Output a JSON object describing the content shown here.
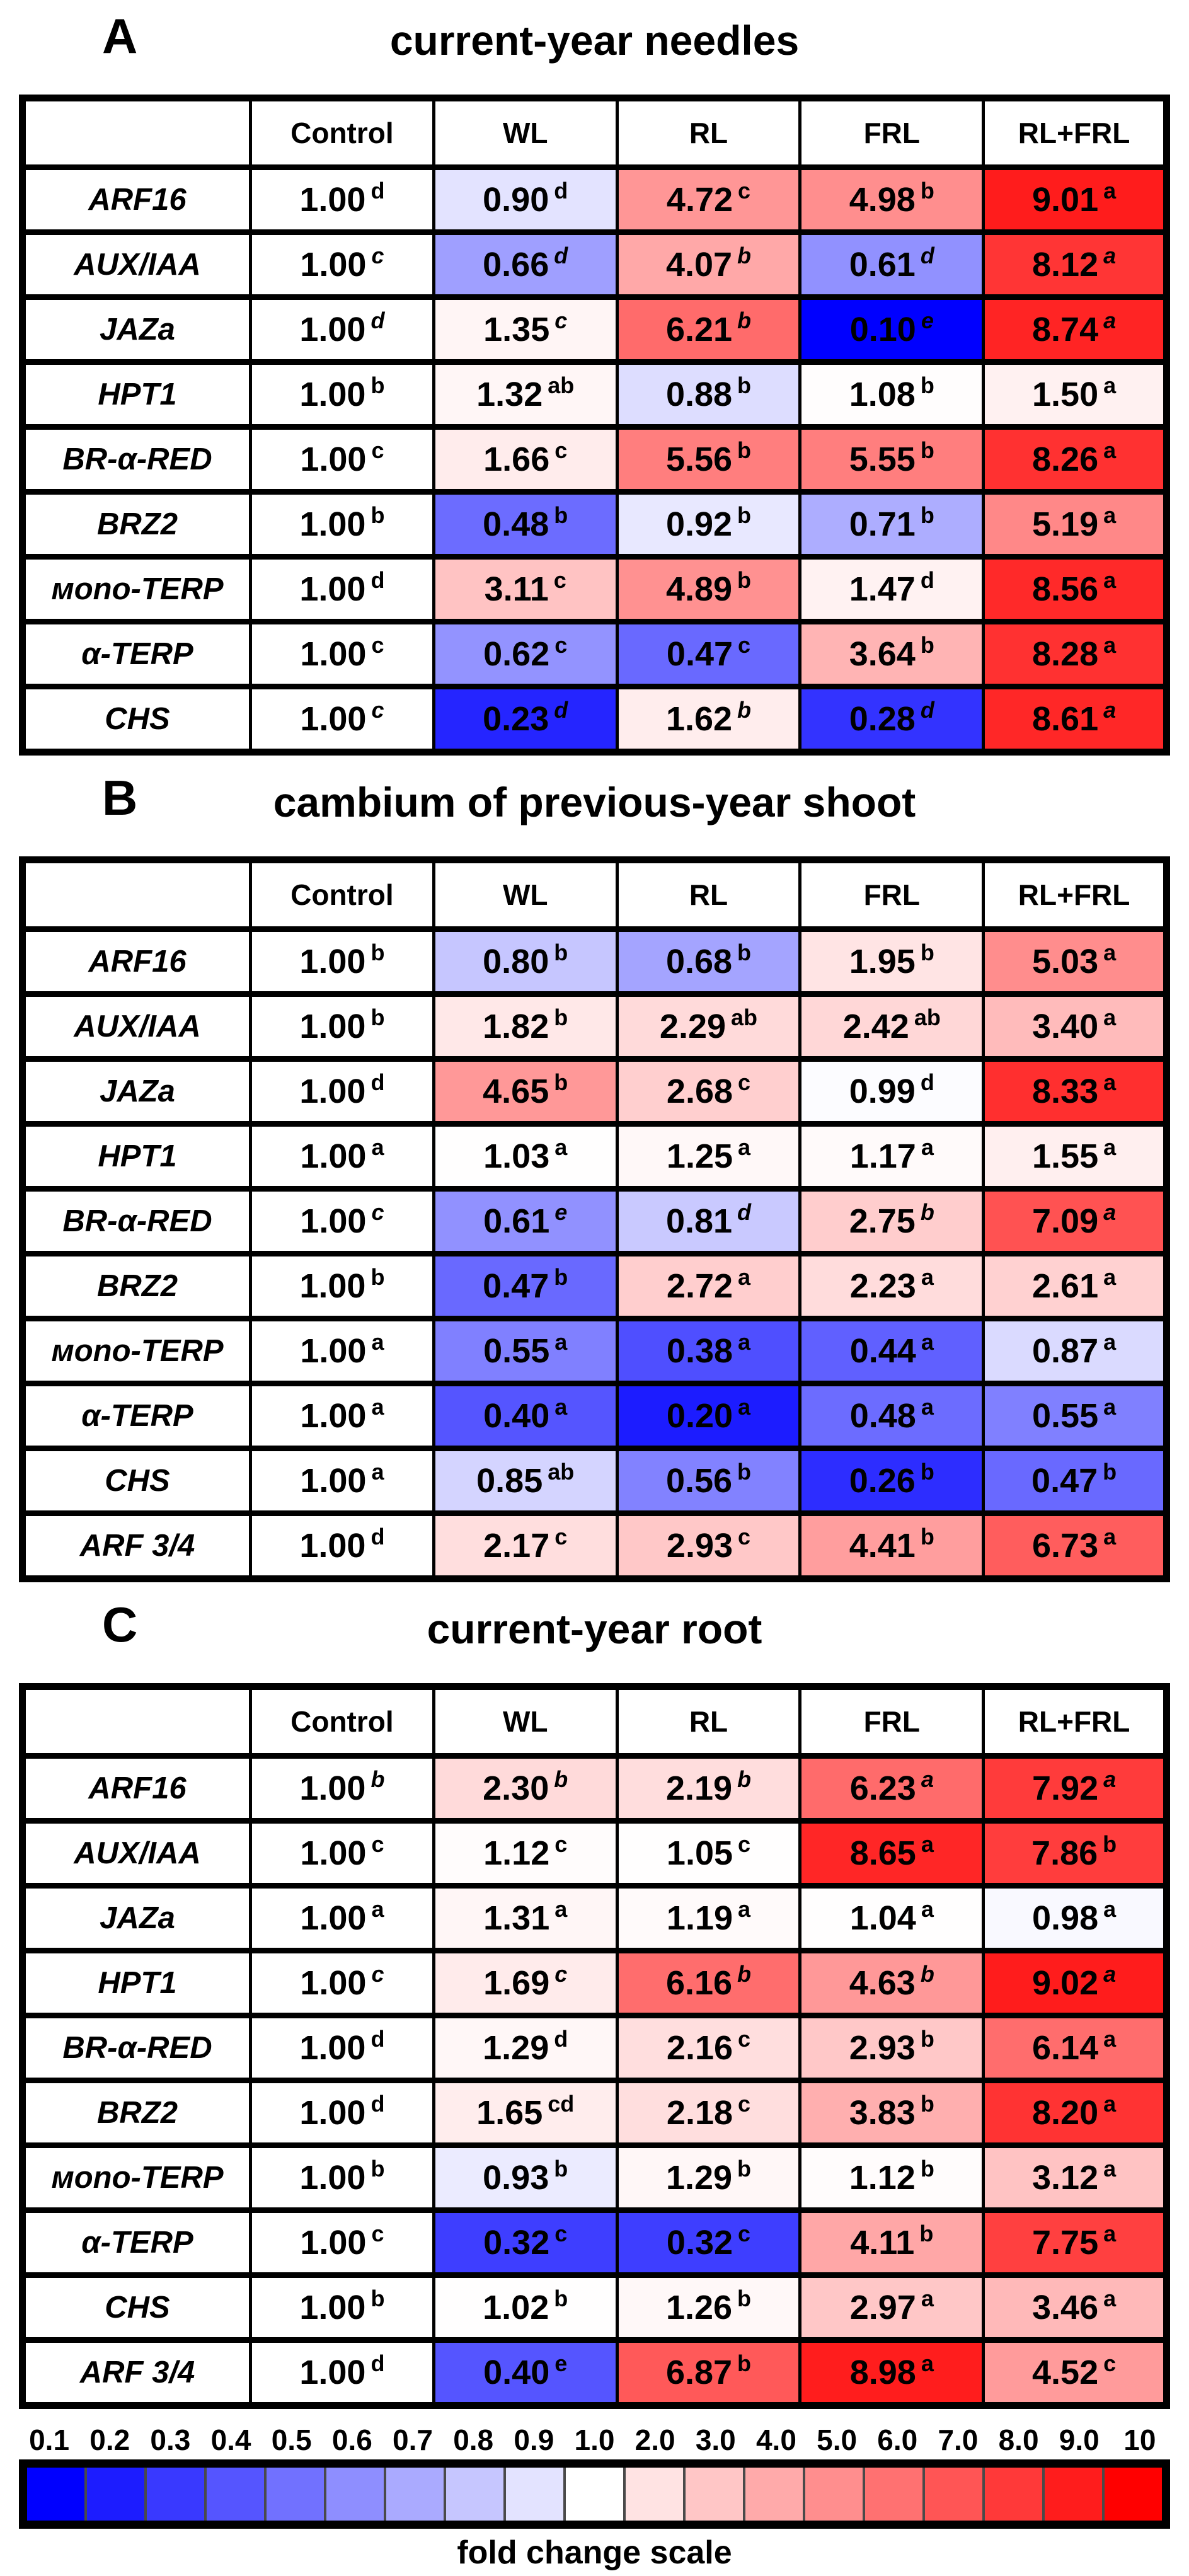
{
  "chart_data": {
    "type": "heatmap",
    "description": "Gene expression fold-change heatmap tables under light treatments, blue = down-regulated, red = up-regulated, superscript letters = significance groups",
    "panels": [
      {
        "panel_label": "A",
        "title": "current-year needles",
        "columns": [
          "Control",
          "WL",
          "RL",
          "FRL",
          "RL+FRL"
        ],
        "genes": [
          "ARF16",
          "AUX/IAA",
          "JAZa",
          "HPT1",
          "BR-α-RED",
          "BRZ2",
          "мono-TERP",
          "α-TERP",
          "CHS"
        ],
        "values": [
          [
            1.0,
            0.9,
            4.72,
            4.98,
            9.01
          ],
          [
            1.0,
            0.66,
            4.07,
            0.61,
            8.12
          ],
          [
            1.0,
            1.35,
            6.21,
            0.1,
            8.74
          ],
          [
            1.0,
            1.32,
            0.88,
            1.08,
            1.5
          ],
          [
            1.0,
            1.66,
            5.56,
            5.55,
            8.26
          ],
          [
            1.0,
            0.48,
            0.92,
            0.71,
            5.19
          ],
          [
            1.0,
            3.11,
            4.89,
            1.47,
            8.56
          ],
          [
            1.0,
            0.62,
            0.47,
            3.64,
            8.28
          ],
          [
            1.0,
            0.23,
            1.62,
            0.28,
            8.61
          ]
        ],
        "letters": [
          [
            "d",
            "d",
            "c",
            "b",
            "a"
          ],
          [
            "c",
            "d",
            "b",
            "d",
            "a"
          ],
          [
            "d",
            "c",
            "b",
            "e",
            "a"
          ],
          [
            "b",
            "ab",
            "b",
            "b",
            "a"
          ],
          [
            "c",
            "c",
            "b",
            "b",
            "a"
          ],
          [
            "b",
            "b",
            "b",
            "b",
            "a"
          ],
          [
            "d",
            "c",
            "b",
            "d",
            "a"
          ],
          [
            "c",
            "c",
            "c",
            "b",
            "a"
          ],
          [
            "c",
            "d",
            "b",
            "d",
            "a"
          ]
        ],
        "letters_italic_rows": [
          false,
          true,
          true,
          false,
          false,
          false,
          false,
          false,
          true
        ]
      },
      {
        "panel_label": "B",
        "title": "cambium of previous-year shoot",
        "columns": [
          "Control",
          "WL",
          "RL",
          "FRL",
          "RL+FRL"
        ],
        "genes": [
          "ARF16",
          "AUX/IAA",
          "JAZa",
          "HPT1",
          "BR-α-RED",
          "BRZ2",
          "мono-TERP",
          "α-TERP",
          "CHS",
          "ARF 3/4"
        ],
        "values": [
          [
            1.0,
            0.8,
            0.68,
            1.95,
            5.03
          ],
          [
            1.0,
            1.82,
            2.29,
            2.42,
            3.4
          ],
          [
            1.0,
            4.65,
            2.68,
            0.99,
            8.33
          ],
          [
            1.0,
            1.03,
            1.25,
            1.17,
            1.55
          ],
          [
            1.0,
            0.61,
            0.81,
            2.75,
            7.09
          ],
          [
            1.0,
            0.47,
            2.72,
            2.23,
            2.61
          ],
          [
            1.0,
            0.55,
            0.38,
            0.44,
            0.87
          ],
          [
            1.0,
            0.4,
            0.2,
            0.48,
            0.55
          ],
          [
            1.0,
            0.85,
            0.56,
            0.26,
            0.47
          ],
          [
            1.0,
            2.17,
            2.93,
            4.41,
            6.73
          ]
        ],
        "letters": [
          [
            "b",
            "b",
            "b",
            "b",
            "a"
          ],
          [
            "b",
            "b",
            "ab",
            "ab",
            "a"
          ],
          [
            "d",
            "b",
            "c",
            "d",
            "a"
          ],
          [
            "a",
            "a",
            "a",
            "a",
            "a"
          ],
          [
            "c",
            "e",
            "d",
            "b",
            "a"
          ],
          [
            "b",
            "b",
            "a",
            "a",
            "a"
          ],
          [
            "a",
            "a",
            "a",
            "a",
            "a"
          ],
          [
            "a",
            "a",
            "a",
            "a",
            "a"
          ],
          [
            "a",
            "ab",
            "b",
            "b",
            "b"
          ],
          [
            "d",
            "c",
            "c",
            "b",
            "a"
          ]
        ],
        "letters_italic_rows": [
          false,
          false,
          false,
          false,
          true,
          false,
          false,
          false,
          false,
          false
        ]
      },
      {
        "panel_label": "C",
        "title": "current-year root",
        "columns": [
          "Control",
          "WL",
          "RL",
          "FRL",
          "RL+FRL"
        ],
        "genes": [
          "ARF16",
          "AUX/IAA",
          "JAZa",
          "HPT1",
          "BR-α-RED",
          "BRZ2",
          "мono-TERP",
          "α-TERP",
          "CHS",
          "ARF 3/4"
        ],
        "values": [
          [
            1.0,
            2.3,
            2.19,
            6.23,
            7.92
          ],
          [
            1.0,
            1.12,
            1.05,
            8.65,
            7.86
          ],
          [
            1.0,
            1.31,
            1.19,
            1.04,
            0.98
          ],
          [
            1.0,
            1.69,
            6.16,
            4.63,
            9.02
          ],
          [
            1.0,
            1.29,
            2.16,
            2.93,
            6.14
          ],
          [
            1.0,
            1.65,
            2.18,
            3.83,
            8.2
          ],
          [
            1.0,
            0.93,
            1.29,
            1.12,
            3.12
          ],
          [
            1.0,
            0.32,
            0.32,
            4.11,
            7.75
          ],
          [
            1.0,
            1.02,
            1.26,
            2.97,
            3.46
          ],
          [
            1.0,
            0.4,
            6.87,
            8.98,
            4.52
          ]
        ],
        "letters": [
          [
            "b",
            "b",
            "b",
            "a",
            "a"
          ],
          [
            "c",
            "c",
            "c",
            "a",
            "b"
          ],
          [
            "a",
            "a",
            "a",
            "a",
            "a"
          ],
          [
            "c",
            "c",
            "b",
            "b",
            "a"
          ],
          [
            "d",
            "d",
            "c",
            "b",
            "a"
          ],
          [
            "d",
            "cd",
            "c",
            "b",
            "a"
          ],
          [
            "b",
            "b",
            "b",
            "b",
            "a"
          ],
          [
            "c",
            "c",
            "c",
            "b",
            "a"
          ],
          [
            "b",
            "b",
            "b",
            "a",
            "a"
          ],
          [
            "d",
            "e",
            "b",
            "a",
            "c"
          ]
        ],
        "letters_italic_rows": [
          true,
          false,
          false,
          true,
          false,
          false,
          false,
          false,
          false,
          false
        ]
      }
    ],
    "colorbar": {
      "tick_labels": [
        "0.1",
        "0.2",
        "0.3",
        "0.4",
        "0.5",
        "0.6",
        "0.7",
        "0.8",
        "0.9",
        "1.0",
        "2.0",
        "3.0",
        "4.0",
        "5.0",
        "6.0",
        "7.0",
        "8.0",
        "9.0",
        "10"
      ],
      "tick_values": [
        0.1,
        0.2,
        0.3,
        0.4,
        0.5,
        0.6,
        0.7,
        0.8,
        0.9,
        1.0,
        2.0,
        3.0,
        4.0,
        5.0,
        6.0,
        7.0,
        8.0,
        9.0,
        10
      ],
      "caption": "fold change scale",
      "colors": {
        "low": "#0000ff",
        "mid": "#ffffff",
        "high": "#ff0000"
      },
      "domain": [
        0.1,
        1.0,
        10
      ]
    }
  }
}
